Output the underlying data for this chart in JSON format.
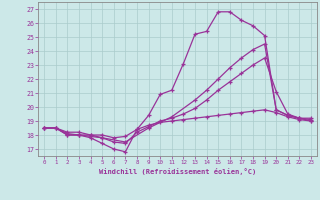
{
  "bg_color": "#cce8e8",
  "line_color": "#993399",
  "xlabel": "Windchill (Refroidissement éolien,°C)",
  "xlim": [
    -0.5,
    23.5
  ],
  "ylim": [
    16.5,
    27.5
  ],
  "xticks": [
    0,
    1,
    2,
    3,
    4,
    5,
    6,
    7,
    8,
    9,
    10,
    11,
    12,
    13,
    14,
    15,
    16,
    17,
    18,
    19,
    20,
    21,
    22,
    23
  ],
  "yticks": [
    17,
    18,
    19,
    20,
    21,
    22,
    23,
    24,
    25,
    26,
    27
  ],
  "line1_x": [
    0,
    1,
    2,
    3,
    4,
    5,
    6,
    7,
    8,
    9,
    10,
    11,
    12,
    13,
    14,
    15,
    16,
    17,
    18,
    19,
    20,
    21,
    22,
    23
  ],
  "line1_y": [
    18.5,
    18.5,
    18.0,
    18.0,
    17.8,
    17.4,
    17.0,
    16.8,
    18.4,
    19.4,
    20.9,
    21.2,
    23.1,
    25.2,
    25.4,
    26.8,
    26.8,
    26.2,
    25.8,
    25.1,
    19.8,
    19.4,
    19.2,
    19.2
  ],
  "line2_x": [
    0,
    1,
    2,
    3,
    4,
    5,
    6,
    7,
    8,
    9,
    10,
    11,
    12,
    13,
    14,
    15,
    16,
    17,
    18,
    19,
    20,
    21,
    22,
    23
  ],
  "line2_y": [
    18.5,
    18.5,
    18.0,
    18.0,
    18.0,
    17.8,
    17.5,
    17.4,
    18.2,
    18.6,
    19.0,
    19.2,
    19.5,
    19.9,
    20.5,
    21.2,
    21.8,
    22.4,
    23.0,
    23.5,
    21.1,
    19.5,
    19.2,
    19.1
  ],
  "line3_x": [
    0,
    1,
    2,
    3,
    4,
    5,
    6,
    7,
    8,
    9,
    10,
    11,
    12,
    13,
    14,
    15,
    16,
    17,
    18,
    19,
    20,
    21,
    22,
    23
  ],
  "line3_y": [
    18.5,
    18.5,
    18.2,
    18.2,
    18.0,
    18.0,
    17.8,
    17.9,
    18.4,
    18.7,
    18.9,
    19.0,
    19.1,
    19.2,
    19.3,
    19.4,
    19.5,
    19.6,
    19.7,
    19.8,
    19.6,
    19.3,
    19.1,
    19.0
  ],
  "line4_x": [
    0,
    1,
    2,
    3,
    5,
    7,
    9,
    11,
    13,
    14,
    15,
    16,
    17,
    18,
    19,
    20,
    21,
    22,
    23
  ],
  "line4_y": [
    18.5,
    18.5,
    18.1,
    18.0,
    17.8,
    17.5,
    18.5,
    19.3,
    20.5,
    21.2,
    22.0,
    22.8,
    23.5,
    24.1,
    24.5,
    19.8,
    19.4,
    19.2,
    19.0
  ]
}
